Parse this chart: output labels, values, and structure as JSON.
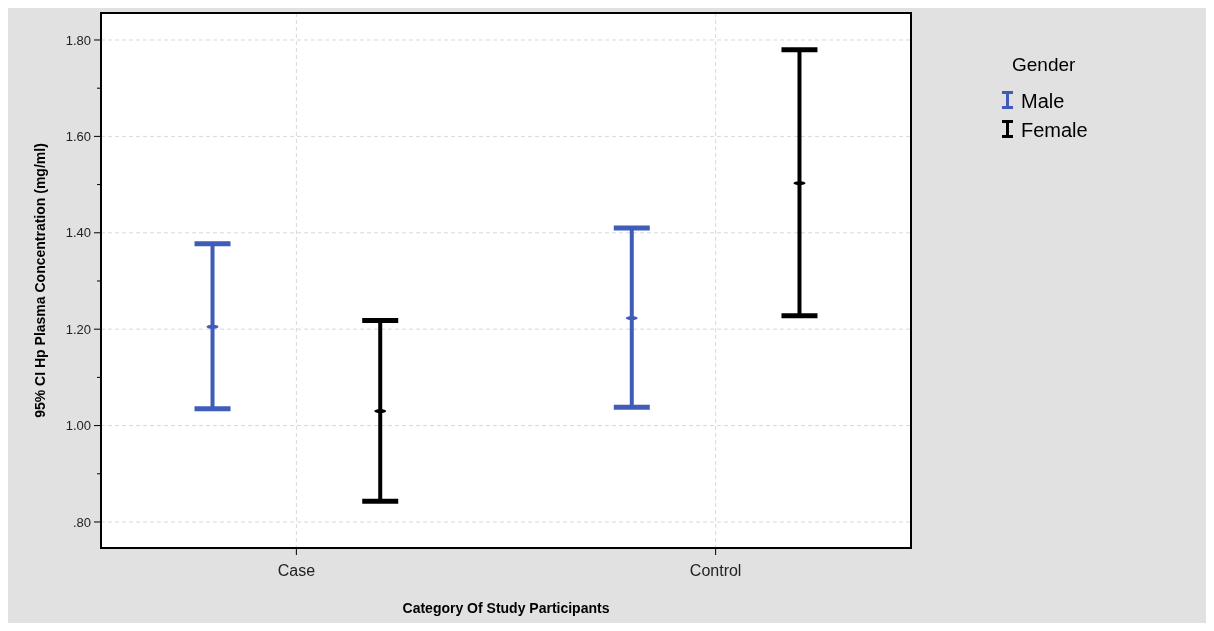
{
  "chart_data": {
    "type": "scatter",
    "xlabel": "Category Of Study Participants",
    "ylabel": "95% CI Hp Plasma Concentration (mg/ml)",
    "legend_title": "Gender",
    "legend": "top right",
    "grid": true,
    "categories": [
      null,
      "Case",
      null,
      null,
      null,
      null,
      "Control",
      null
    ],
    "ylim": [
      0.746,
      1.856
    ],
    "yticks": [
      {
        "value": 0.8,
        "label": ".80"
      },
      {
        "value": 0.9,
        "label": null
      },
      {
        "value": 1.0,
        "label": "1.00"
      },
      {
        "value": 1.1,
        "label": null
      },
      {
        "value": 1.2,
        "label": "1.20"
      },
      {
        "value": 1.3,
        "label": null
      },
      {
        "value": 1.4,
        "label": "1.40"
      },
      {
        "value": 1.5,
        "label": null
      },
      {
        "value": 1.6,
        "label": "1.60"
      },
      {
        "value": 1.7,
        "label": null
      },
      {
        "value": 1.8,
        "label": "1.80"
      }
    ],
    "series": [
      {
        "name": "Male",
        "color": "#3f5cb8",
        "values": [
          1.205,
          null,
          null,
          null,
          null,
          1.223,
          null,
          null
        ],
        "errors": [
          [
            1.035,
            1.377
          ],
          null,
          null,
          null,
          null,
          [
            1.038,
            1.41
          ],
          null,
          null
        ]
      },
      {
        "name": "Female",
        "color": "#000000",
        "values": [
          null,
          null,
          1.03,
          null,
          null,
          null,
          null,
          1.503
        ],
        "errors": [
          null,
          null,
          [
            0.843,
            1.218
          ],
          null,
          null,
          null,
          null,
          [
            1.228,
            1.78
          ]
        ]
      }
    ]
  }
}
